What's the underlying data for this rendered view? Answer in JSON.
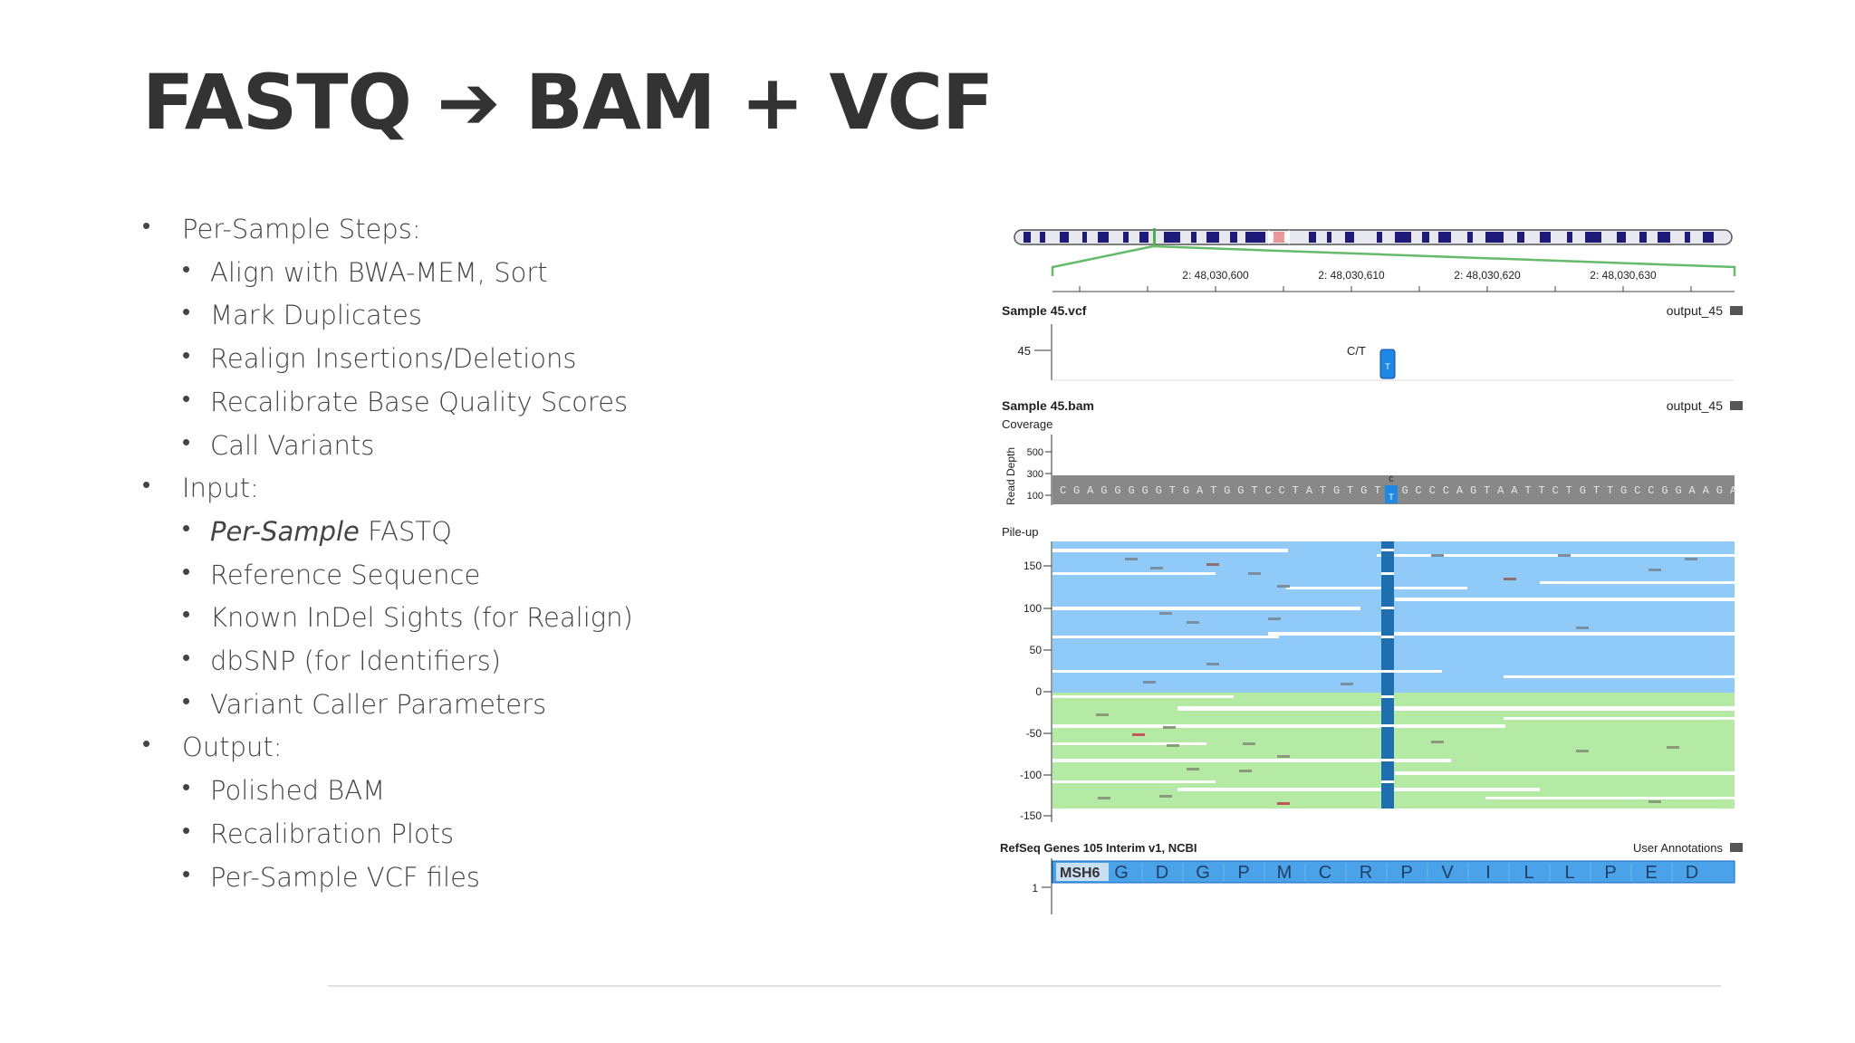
{
  "slide": {
    "title": "FASTQ ➔ BAM + VCF",
    "bullets": [
      {
        "level": 1,
        "text": "Per-Sample Steps:"
      },
      {
        "level": 2,
        "text": "Align with BWA-MEM, Sort"
      },
      {
        "level": 2,
        "text": "Mark Duplicates"
      },
      {
        "level": 2,
        "text": "Realign Insertions/Deletions"
      },
      {
        "level": 2,
        "text": "Recalibrate Base Quality Scores"
      },
      {
        "level": 2,
        "text": "Call Variants"
      },
      {
        "level": 1,
        "text": "Input:"
      },
      {
        "level": 2,
        "italic": "Per-Sample",
        "text": " FASTQ"
      },
      {
        "level": 2,
        "text": "Reference Sequence"
      },
      {
        "level": 2,
        "text": "Known InDel Sights (for Realign)"
      },
      {
        "level": 2,
        "text": "dbSNP (for Identifiers)"
      },
      {
        "level": 2,
        "text": "Variant Caller Parameters"
      },
      {
        "level": 1,
        "text": "Output:"
      },
      {
        "level": 2,
        "text": "Polished BAM"
      },
      {
        "level": 2,
        "text": "Recalibration Plots"
      },
      {
        "level": 2,
        "text": "Per-Sample  VCF files"
      }
    ]
  },
  "genome_view": {
    "ruler_ticks": [
      "2: 48,030,600",
      "2: 48,030,610",
      "2: 48,030,620",
      "2: 48,030,630"
    ],
    "vcf_track": {
      "title": "Sample 45.vcf",
      "output": "output_45",
      "row_label": "45",
      "variant_label": "C/T",
      "variant_base": "T"
    },
    "bam_track": {
      "title": "Sample 45.bam",
      "output": "output_45",
      "coverage_label": "Coverage",
      "depth_axis_label": "Read Depth",
      "coverage_ticks": [
        "500",
        "300",
        "100"
      ],
      "reference_sequence": "CGAGGGGGTGATGGTCCTATGTGTCGCCCAGTAATTCTGTTGCCGGAAGA",
      "variant_ref": "C",
      "variant_alt": "T"
    },
    "pileup": {
      "label": "Pile-up",
      "ticks": [
        "150",
        "100",
        "50",
        "0",
        "-50",
        "-100",
        "-150"
      ]
    },
    "refseq": {
      "title": "RefSeq Genes 105 Interim v1, NCBI",
      "output": "User Annotations",
      "gene": "MSH6",
      "row_label": "1",
      "amino_acids": [
        "G",
        "D",
        "G",
        "P",
        "M",
        "C",
        "R",
        "P",
        "V",
        "I",
        "L",
        "L",
        "P",
        "E",
        "D"
      ]
    },
    "colors": {
      "forward_reads": "#90caf9",
      "reverse_reads": "#b5eaa4",
      "variant_column": "#1e6fb0",
      "gene_bar": "#4aa3e8",
      "ideogram_band": "#1d1a7a",
      "zoom_lines": "#4caf50"
    }
  }
}
